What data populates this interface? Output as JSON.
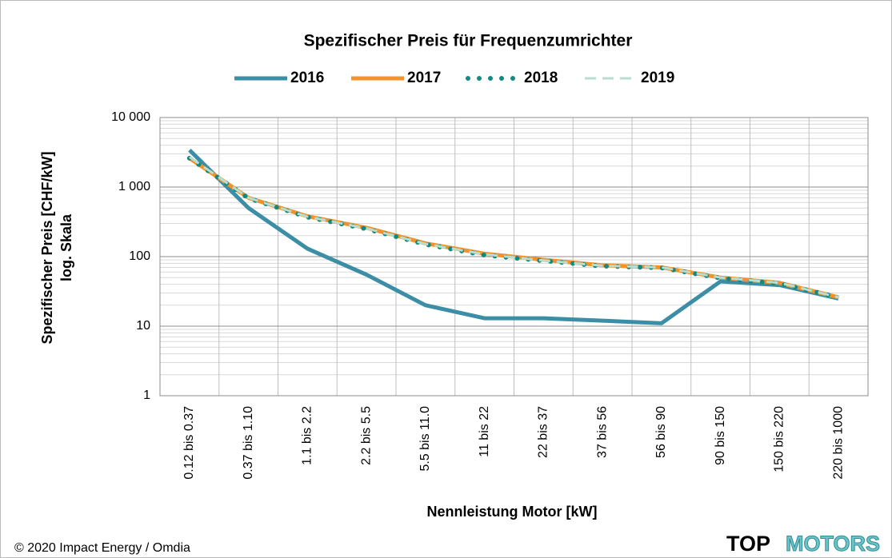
{
  "chart_data": {
    "type": "line",
    "title": "Spezifischer Preis für Frequenzumrichter",
    "x_label": "Nennleistung Motor [kW]",
    "y_label": [
      "Spezifischer Preis [CHF/kW]",
      "log. Skala"
    ],
    "categories": [
      "0.12 bis 0.37",
      "0.37 bis 1.10",
      "1.1 bis 2.2",
      "2.2 bis 5.5",
      "5.5 bis 11.0",
      "11 bis 22",
      "22 bis 37",
      "37 bis 56",
      "56 bis 90",
      "90 bis 150",
      "150 bis 220",
      "220 bis 1000"
    ],
    "series": [
      {
        "name": "2016",
        "color": "#3b8ea5",
        "line_style": "solid",
        "values": [
          3400,
          500,
          130,
          55,
          20,
          13,
          13,
          12,
          11,
          44,
          39,
          25
        ]
      },
      {
        "name": "2017",
        "color": "#f0922e",
        "line_style": "solid",
        "values": [
          2600,
          700,
          380,
          260,
          155,
          110,
          90,
          75,
          70,
          50,
          42,
          26
        ]
      },
      {
        "name": "2018",
        "color": "#14897f",
        "line_style": "dots",
        "values": [
          2600,
          690,
          370,
          250,
          150,
          105,
          87,
          73,
          69,
          49,
          41,
          26
        ]
      },
      {
        "name": "2019",
        "color": "#b9ddce",
        "line_style": "dashes",
        "values": [
          2700,
          700,
          375,
          255,
          152,
          108,
          88,
          74,
          70,
          50,
          42,
          26
        ]
      }
    ],
    "log_scale": true,
    "ylim": [
      1,
      10000
    ],
    "yticks": [
      1,
      10,
      100,
      {
        "value": 1000,
        "label": "1 000"
      },
      {
        "value": 10000,
        "label": "10 000"
      }
    ],
    "grid": true,
    "minor_grid": true,
    "legend": "top",
    "footer": "© 2020 Impact Energy / Omdia",
    "logo": [
      "TOP",
      "MOTORS"
    ]
  }
}
